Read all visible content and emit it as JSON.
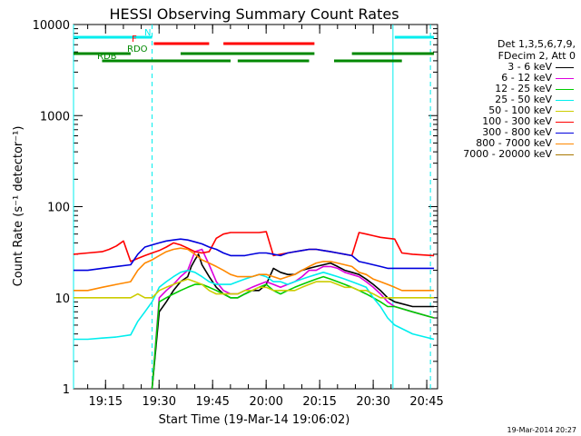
{
  "chart_data": {
    "type": "line",
    "title": "HESSI Observing Summary Count Rates",
    "xlabel": "Start Time (19-Mar-14 19:06:02)",
    "ylabel": "Count Rate (s⁻¹ detector⁻¹)",
    "x_ticks": [
      "19:15",
      "19:30",
      "19:45",
      "20:00",
      "20:15",
      "20:30",
      "20:45"
    ],
    "x_tick_minutes": [
      8.97,
      23.97,
      38.97,
      53.97,
      68.97,
      83.97,
      98.97
    ],
    "xlim_minutes": [
      0,
      102
    ],
    "y_scale": "log",
    "y_ticks": [
      "1",
      "10",
      "100",
      "1000",
      "10000"
    ],
    "ylim": [
      1,
      10000
    ],
    "legend_header": [
      "Det 1,3,5,6,7,9,",
      "FDecim 2, Att 0"
    ],
    "legend_position": "right, outside plot",
    "series": [
      {
        "name": "3 - 6 keV",
        "color": "#000000",
        "x": [
          0,
          10,
          12,
          14,
          16,
          18,
          20,
          22,
          24,
          26,
          28,
          30,
          32,
          33,
          34,
          35,
          36,
          38,
          40,
          42,
          44,
          46,
          48,
          50,
          52,
          54,
          56,
          58,
          60,
          62,
          64,
          66,
          68,
          70,
          72,
          74,
          76,
          78,
          80,
          82,
          84,
          86,
          88,
          90,
          95,
          101
        ],
        "y": [
          null,
          null,
          null,
          null,
          null,
          null,
          null,
          0.1,
          7,
          9,
          12,
          15,
          17,
          22,
          26,
          30,
          23,
          17,
          13,
          11,
          10,
          10,
          11,
          12,
          12,
          14,
          21,
          19,
          18,
          18,
          20,
          21,
          22,
          23,
          24,
          22,
          20,
          19,
          18,
          16,
          14,
          12,
          10,
          9,
          8,
          8
        ]
      },
      {
        "name": "6 - 12 keV",
        "color": "#dd00dd",
        "x": [
          22,
          24,
          26,
          28,
          30,
          32,
          34,
          36,
          38,
          40,
          42,
          44,
          46,
          48,
          50,
          52,
          54,
          56,
          58,
          60,
          62,
          64,
          66,
          68,
          70,
          72,
          74,
          76,
          78,
          80,
          82,
          84,
          86,
          88,
          90,
          95,
          101
        ],
        "y": [
          0.1,
          10,
          12,
          14,
          17,
          20,
          32,
          34,
          23,
          15,
          12,
          11,
          11,
          12,
          13,
          14,
          15,
          14,
          13,
          14,
          15,
          17,
          20,
          20,
          22,
          22,
          21,
          19,
          18,
          17,
          15,
          13,
          11,
          9,
          8,
          7,
          6
        ]
      },
      {
        "name": "12 - 25 keV",
        "color": "#00cc00",
        "x": [
          22,
          24,
          26,
          28,
          30,
          32,
          34,
          36,
          38,
          40,
          42,
          44,
          46,
          48,
          50,
          52,
          54,
          56,
          58,
          60,
          62,
          64,
          66,
          68,
          70,
          72,
          74,
          76,
          78,
          80,
          82,
          84,
          86,
          88,
          90,
          95,
          101
        ],
        "y": [
          1,
          9,
          10,
          11,
          12,
          13,
          14,
          14,
          13,
          12,
          11,
          10,
          10,
          11,
          12,
          13,
          14,
          12,
          11,
          12,
          13,
          14,
          15,
          16,
          17,
          16,
          15,
          14,
          13,
          12,
          11,
          10,
          9,
          8,
          8,
          7,
          6
        ]
      },
      {
        "name": "25 - 50 keV",
        "color": "#00eeee",
        "x": [
          0,
          4,
          8,
          12,
          16,
          18,
          20,
          22,
          24,
          26,
          28,
          30,
          32,
          34,
          36,
          38,
          40,
          42,
          44,
          46,
          48,
          50,
          52,
          54,
          56,
          58,
          60,
          62,
          64,
          66,
          68,
          70,
          72,
          74,
          76,
          78,
          80,
          82,
          84,
          86,
          88,
          90,
          95,
          101
        ],
        "y": [
          3.5,
          3.5,
          3.6,
          3.7,
          3.9,
          5.5,
          7,
          9,
          13,
          15,
          17,
          19,
          20,
          19,
          17,
          15,
          14,
          14,
          14,
          15,
          16,
          17,
          18,
          17,
          15,
          15,
          14,
          15,
          16,
          17,
          18,
          19,
          18,
          17,
          16,
          15,
          14,
          13,
          10,
          8,
          6,
          5,
          4,
          3.5
        ]
      },
      {
        "name": "50 - 100 keV",
        "color": "#cccc00",
        "x": [
          0,
          4,
          8,
          12,
          16,
          18,
          20,
          22,
          24,
          26,
          28,
          30,
          32,
          34,
          36,
          38,
          40,
          42,
          44,
          46,
          48,
          50,
          52,
          54,
          56,
          58,
          60,
          62,
          64,
          66,
          68,
          70,
          72,
          74,
          76,
          78,
          80,
          82,
          84,
          86,
          88,
          90,
          95,
          101
        ],
        "y": [
          10,
          10,
          10,
          10,
          10,
          11,
          10,
          10,
          12,
          13,
          14,
          15,
          16,
          15,
          14,
          12,
          11,
          11,
          11,
          11,
          12,
          12,
          13,
          13,
          12,
          12,
          12,
          12,
          13,
          14,
          15,
          15,
          15,
          14,
          13,
          13,
          12,
          12,
          11,
          10,
          10,
          10,
          10,
          10
        ]
      },
      {
        "name": "100 - 300 keV",
        "color": "#ff0000",
        "x": [
          0,
          4,
          8,
          10,
          12,
          14,
          16,
          18,
          20,
          22,
          24,
          26,
          28,
          30,
          32,
          34,
          36,
          38,
          40,
          42,
          44,
          46,
          48,
          50,
          52,
          54,
          56,
          58,
          60,
          62,
          64,
          66,
          68,
          70,
          72,
          74,
          76,
          78,
          80,
          82,
          84,
          86,
          88,
          90,
          92,
          95,
          101
        ],
        "y": [
          30,
          31,
          32,
          34,
          37,
          42,
          25,
          27,
          29,
          31,
          33,
          36,
          40,
          38,
          35,
          32,
          31,
          32,
          45,
          50,
          52,
          52,
          52,
          52,
          52,
          53,
          29,
          30,
          31,
          32,
          33,
          34,
          34,
          33,
          32,
          31,
          30,
          29,
          52,
          50,
          48,
          46,
          45,
          44,
          31,
          30,
          29
        ]
      },
      {
        "name": "300 - 800 keV",
        "color": "#0000dd",
        "x": [
          0,
          4,
          8,
          12,
          16,
          18,
          20,
          22,
          24,
          26,
          28,
          30,
          32,
          34,
          36,
          38,
          40,
          42,
          44,
          46,
          48,
          50,
          52,
          54,
          56,
          58,
          60,
          62,
          64,
          66,
          68,
          70,
          72,
          74,
          76,
          78,
          80,
          82,
          84,
          86,
          88,
          90,
          92,
          95,
          101
        ],
        "y": [
          20,
          20,
          21,
          22,
          23,
          30,
          36,
          38,
          40,
          42,
          43,
          44,
          43,
          41,
          39,
          36,
          34,
          31,
          29,
          29,
          29,
          30,
          31,
          31,
          30,
          29,
          31,
          32,
          33,
          34,
          34,
          33,
          32,
          31,
          30,
          29,
          25,
          24,
          23,
          22,
          21,
          21,
          21,
          21,
          21
        ]
      },
      {
        "name": "800 - 7000 keV",
        "color": "#ff8800",
        "x": [
          0,
          4,
          8,
          12,
          16,
          18,
          20,
          22,
          24,
          26,
          28,
          30,
          32,
          34,
          36,
          38,
          40,
          42,
          44,
          46,
          48,
          50,
          52,
          54,
          56,
          58,
          60,
          62,
          64,
          66,
          68,
          70,
          72,
          74,
          76,
          78,
          80,
          82,
          84,
          86,
          88,
          90,
          92,
          95,
          101
        ],
        "y": [
          12,
          12,
          13,
          14,
          15,
          20,
          24,
          26,
          29,
          32,
          34,
          35,
          34,
          30,
          26,
          24,
          22,
          20,
          18,
          17,
          17,
          17,
          18,
          18,
          17,
          16,
          17,
          18,
          20,
          22,
          24,
          25,
          25,
          24,
          23,
          22,
          19,
          18,
          16,
          15,
          14,
          13,
          12,
          12,
          12
        ]
      },
      {
        "name": "7000 - 20000 keV",
        "color": "#aa7700",
        "x": [],
        "y": []
      }
    ],
    "flags": [
      {
        "label": "N",
        "color": "#00eeee",
        "segments": [
          [
            0,
            22
          ],
          [
            90,
            101
          ]
        ]
      },
      {
        "label": "F",
        "color": "#ff0000",
        "segments": [
          [
            22.5,
            38
          ],
          [
            42,
            67.5
          ]
        ]
      },
      {
        "label": "RDO",
        "color": "#008800",
        "segments": [
          [
            0,
            16
          ],
          [
            30,
            67.5
          ],
          [
            78,
            101
          ]
        ]
      },
      {
        "label": "RDB",
        "color": "#008800",
        "segments": [
          [
            8,
            44
          ],
          [
            46,
            66
          ],
          [
            73,
            92
          ]
        ]
      }
    ],
    "vertical_lines": [
      {
        "x": 0,
        "color": "#00eeee",
        "style": "solid"
      },
      {
        "x": 22,
        "color": "#00eeee",
        "style": "dashed"
      },
      {
        "x": 89.5,
        "color": "#00eeee",
        "style": "solid"
      },
      {
        "x": 100,
        "color": "#00eeee",
        "style": "dashed"
      }
    ],
    "grid": false
  },
  "footer": {
    "timestamp": "19-Mar-2014 20:27"
  }
}
